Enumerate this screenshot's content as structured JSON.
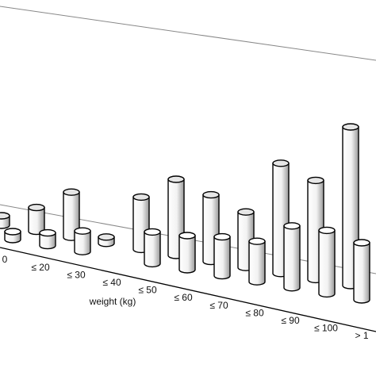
{
  "chart_data": {
    "type": "bar3d",
    "x_label": "weight (kg)",
    "categories": [
      "0",
      "≤ 20",
      "≤ 30",
      "≤ 40",
      "≤ 50",
      "≤ 60",
      "≤ 70",
      "≤ 80",
      "≤ 90",
      "≤ 100",
      "> 1"
    ],
    "series": [
      {
        "color": "#e6e6e6",
        "values": [
          12,
          30,
          57,
          8,
          66,
          96,
          84,
          70,
          139,
          125,
          200
        ]
      },
      {
        "color": "#ffffff",
        "values": [
          10,
          16,
          26,
          null,
          40,
          43,
          49,
          51,
          78,
          80,
          72
        ]
      }
    ]
  }
}
